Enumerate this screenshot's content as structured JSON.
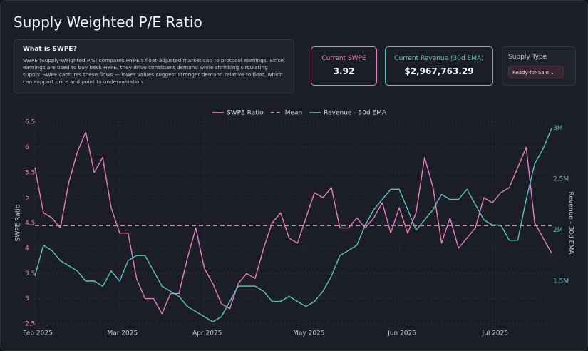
{
  "header": {
    "title": "Supply Weighted P/E Ratio"
  },
  "info": {
    "title": "What is SWPE?",
    "text": "SWPE (Supply-Weighted P/E) compares HYPE's float-adjusted market cap to protocol earnings. Since earnings are used to buy back HYPE, they drive consistent demand while shrinking circulating supply. SWPE captures these flows — lower values suggest stronger demand relative to float, which can support price and point to undervaluation."
  },
  "stats": [
    {
      "label": "Current SWPE",
      "value": "3.92"
    },
    {
      "label": "Current Revenue (30d EMA)",
      "value": "$2,967,763.29"
    }
  ],
  "supply_type": {
    "label": "Supply Type",
    "selected": "Ready-for-Sale"
  },
  "chart_data": {
    "type": "line",
    "y_label": "SWPE Ratio",
    "y2_label": "Revenue - 30d EMA",
    "categories": [
      "Feb 2025",
      null,
      null,
      null,
      null,
      null,
      null,
      null,
      null,
      null,
      "Mar 2025",
      null,
      null,
      null,
      null,
      null,
      null,
      null,
      null,
      null,
      "Apr 2025",
      null,
      null,
      null,
      null,
      null,
      null,
      null,
      null,
      null,
      null,
      null,
      "May 2025",
      null,
      null,
      null,
      null,
      null,
      null,
      null,
      null,
      null,
      null,
      "Jun 2025",
      null,
      null,
      null,
      null,
      null,
      null,
      null,
      null,
      null,
      null,
      "Jul 2025",
      null,
      null,
      null,
      null,
      null,
      null,
      null
    ],
    "series": [
      {
        "name": "SWPE Ratio",
        "color": "#e77fc4",
        "values": [
          5.6,
          4.7,
          4.6,
          4.4,
          5.3,
          5.9,
          6.3,
          5.5,
          5.8,
          4.8,
          4.3,
          4.3,
          3.4,
          3.0,
          3.0,
          2.7,
          3.1,
          3.1,
          3.8,
          4.4,
          3.6,
          3.3,
          2.9,
          2.8,
          3.3,
          3.5,
          3.4,
          4.0,
          4.5,
          4.7,
          4.2,
          4.1,
          4.6,
          5.1,
          5.0,
          5.2,
          4.4,
          4.4,
          4.6,
          4.4,
          4.6,
          4.9,
          4.3,
          4.8,
          4.3,
          4.7,
          5.8,
          5.2,
          4.1,
          4.6,
          4.0,
          4.2,
          4.4,
          5.0,
          4.9,
          5.1,
          5.2,
          5.6,
          6.0,
          4.5,
          4.2,
          3.9
        ]
      },
      {
        "name": "Revenue - 30d EMA",
        "color": "#5fc2c0",
        "axis": "y2",
        "values": [
          1550000,
          1850000,
          1800000,
          1700000,
          1650000,
          1600000,
          1500000,
          1500000,
          1450000,
          1600000,
          1500000,
          1700000,
          1750000,
          1750000,
          1600000,
          1450000,
          1400000,
          1350000,
          1250000,
          1200000,
          1150000,
          1100000,
          1150000,
          1300000,
          1450000,
          1450000,
          1450000,
          1400000,
          1300000,
          1300000,
          1350000,
          1300000,
          1250000,
          1300000,
          1400000,
          1550000,
          1750000,
          1800000,
          1850000,
          2050000,
          2200000,
          2300000,
          2400000,
          2400000,
          2200000,
          2000000,
          2100000,
          2200000,
          2350000,
          2300000,
          2300000,
          2400000,
          2250000,
          2100000,
          2050000,
          2050000,
          1900000,
          1900000,
          2300000,
          2650000,
          2800000,
          3000000
        ]
      }
    ],
    "reference_lines": [
      {
        "name": "Mean",
        "value": 4.45,
        "color": "#f3c6df",
        "dash": true
      }
    ],
    "ylim": [
      2.5,
      6.5
    ],
    "yticks": [
      2.5,
      3,
      3.5,
      4,
      4.5,
      5,
      5.5,
      6,
      6.5
    ],
    "y2lim": [
      1080000,
      3060000
    ],
    "y2ticks": [
      {
        "value": 1500000,
        "label": "1.5M"
      },
      {
        "value": 2000000,
        "label": "2M"
      },
      {
        "value": 2500000,
        "label": "2.5M"
      },
      {
        "value": 3000000,
        "label": "3M"
      }
    ],
    "grid": true
  }
}
